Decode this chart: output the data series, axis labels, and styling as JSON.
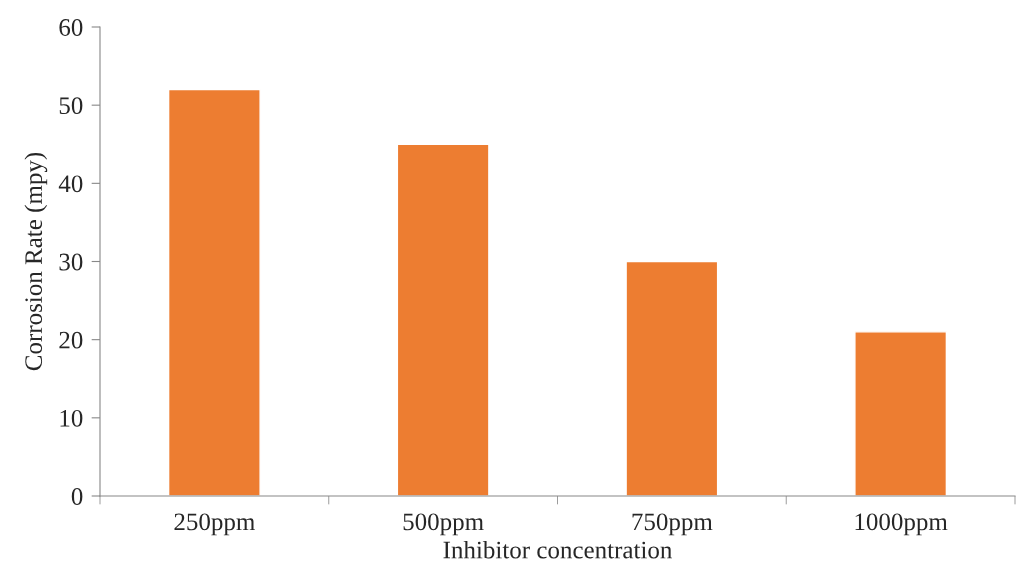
{
  "chart_data": {
    "type": "bar",
    "xlabel": "Inhibitor concentration",
    "ylabel": "Corrosion Rate (mpy)",
    "categories": [
      "250ppm",
      "500ppm",
      "750ppm",
      "1000ppm"
    ],
    "values": [
      52,
      45,
      30,
      21
    ],
    "color": "#ed7d31",
    "ylim": [
      0,
      60
    ],
    "yticks": [
      0,
      10,
      20,
      30,
      40,
      50,
      60
    ],
    "grid": false
  }
}
